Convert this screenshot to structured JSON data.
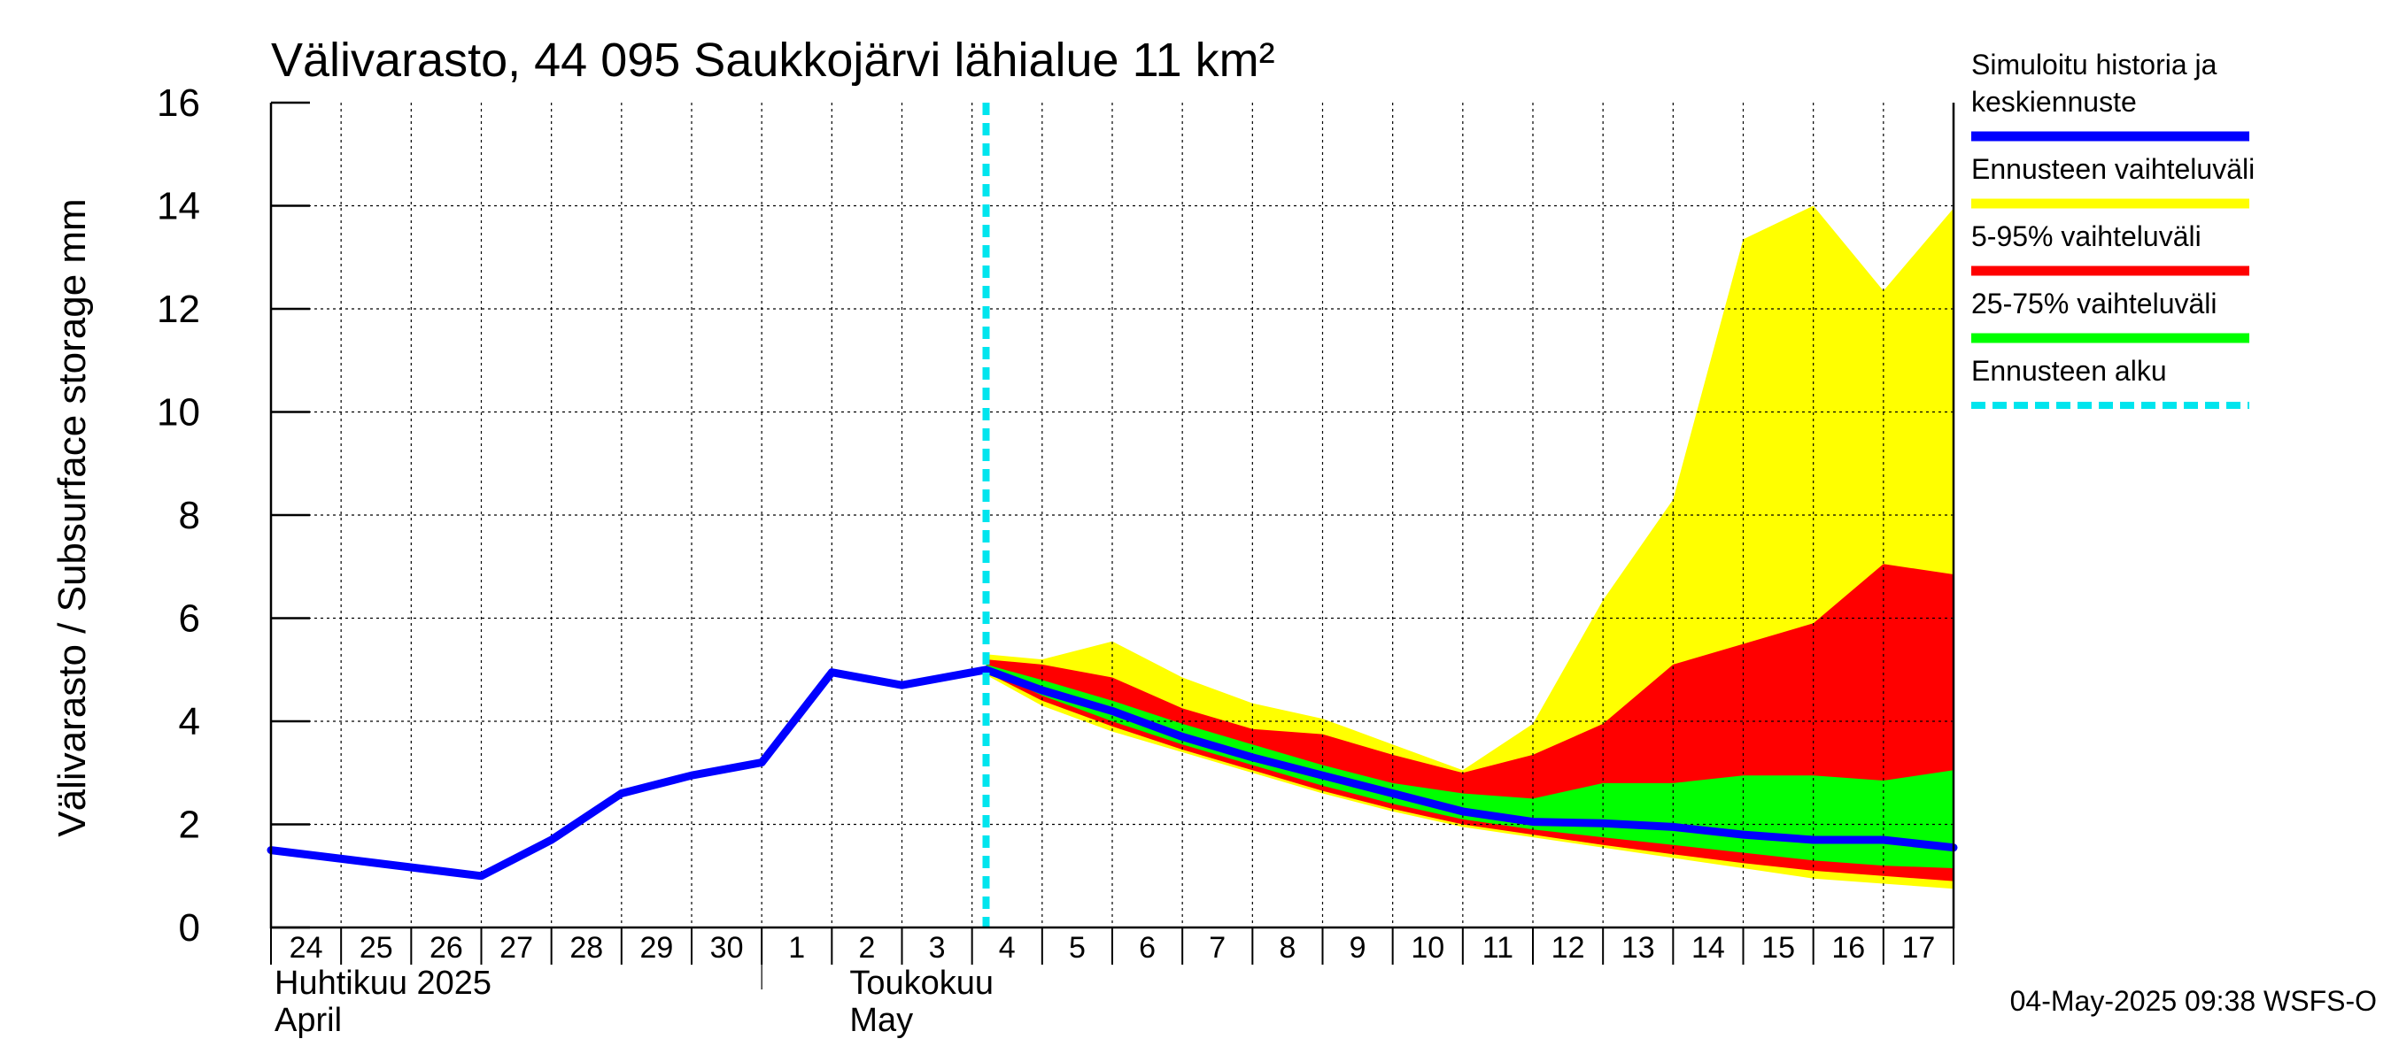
{
  "chart_data": {
    "type": "area",
    "title": "Välivarasto, 44 095 Saukkojärvi lähialue 11 km²",
    "ylabel": "Välivarasto / Subsurface storage  mm",
    "ylim": [
      0,
      16
    ],
    "yticks": [
      "0",
      "2",
      "4",
      "6",
      "8",
      "10",
      "12",
      "14",
      "16"
    ],
    "grid": true,
    "legend_position": "right",
    "x_tick_labels": [
      "24",
      "25",
      "26",
      "27",
      "28",
      "29",
      "30",
      "1",
      "2",
      "3",
      "4",
      "5",
      "6",
      "7",
      "8",
      "9",
      "10",
      "11",
      "12",
      "13",
      "14",
      "15",
      "16",
      "17"
    ],
    "month_labels": [
      {
        "line1": "Huhtikuu  2025",
        "line2": "April"
      },
      {
        "line1": "Toukokuu",
        "line2": "May"
      }
    ],
    "forecast_start_day": 10.2,
    "series": [
      {
        "name": "Simuloitu historia ja keskiennuste",
        "color": "#0000ff",
        "x": [
          0,
          3,
          4,
          5,
          6,
          7,
          8,
          9,
          10,
          10.2,
          11,
          12,
          13,
          14,
          15,
          16,
          17,
          18,
          19,
          20,
          21,
          22,
          23,
          24
        ],
        "values": [
          1.5,
          1.0,
          1.7,
          2.6,
          2.95,
          3.2,
          4.95,
          4.7,
          4.95,
          5.0,
          4.6,
          4.2,
          3.7,
          3.3,
          2.95,
          2.6,
          2.25,
          2.05,
          2.02,
          1.95,
          1.8,
          1.7,
          1.7,
          1.55
        ]
      },
      {
        "name": "Ennusteen vaihteluväli",
        "color": "#ffff00",
        "x": [
          10.2,
          11,
          12,
          13,
          14,
          15,
          16,
          17,
          18,
          19,
          20,
          21,
          22,
          23,
          24
        ],
        "upper": [
          5.3,
          5.2,
          5.55,
          4.85,
          4.35,
          4.05,
          3.55,
          3.05,
          3.95,
          6.35,
          8.3,
          13.35,
          14.0,
          12.35,
          13.95
        ],
        "lower": [
          4.9,
          4.3,
          3.8,
          3.4,
          3.0,
          2.6,
          2.25,
          1.95,
          1.75,
          1.55,
          1.35,
          1.15,
          0.95,
          0.85,
          0.75
        ]
      },
      {
        "name": "5-95% vaihteluväli",
        "color": "#ff0000",
        "x": [
          10.2,
          11,
          12,
          13,
          14,
          15,
          16,
          17,
          18,
          19,
          20,
          21,
          22,
          23,
          24
        ],
        "upper": [
          5.2,
          5.1,
          4.85,
          4.25,
          3.85,
          3.75,
          3.35,
          3.0,
          3.35,
          3.95,
          5.1,
          5.5,
          5.9,
          7.05,
          6.85
        ],
        "lower": [
          4.95,
          4.4,
          3.9,
          3.45,
          3.05,
          2.65,
          2.3,
          2.0,
          1.8,
          1.6,
          1.42,
          1.25,
          1.1,
          1.0,
          0.9
        ]
      },
      {
        "name": "25-75% vaihteluväli",
        "color": "#00ff00",
        "x": [
          10.2,
          11,
          12,
          13,
          14,
          15,
          16,
          17,
          18,
          19,
          20,
          21,
          22,
          23,
          24
        ],
        "upper": [
          5.1,
          4.8,
          4.4,
          3.95,
          3.55,
          3.15,
          2.8,
          2.6,
          2.5,
          2.8,
          2.8,
          2.95,
          2.95,
          2.85,
          3.05
        ],
        "lower": [
          5.0,
          4.5,
          4.0,
          3.55,
          3.15,
          2.75,
          2.4,
          2.1,
          1.9,
          1.75,
          1.6,
          1.45,
          1.3,
          1.2,
          1.15
        ]
      }
    ]
  },
  "legend": [
    {
      "label_lines": [
        "Simuloitu historia ja",
        "keskiennuste"
      ],
      "color": "#0000ff",
      "style": "solid"
    },
    {
      "label_lines": [
        "Ennusteen vaihteluväli"
      ],
      "color": "#ffff00",
      "style": "solid"
    },
    {
      "label_lines": [
        "5-95% vaihteluväli"
      ],
      "color": "#ff0000",
      "style": "solid"
    },
    {
      "label_lines": [
        "25-75% vaihteluväli"
      ],
      "color": "#00ff00",
      "style": "solid"
    },
    {
      "label_lines": [
        "Ennusteen alku"
      ],
      "color": "#00e5ee",
      "style": "dashed"
    }
  ],
  "footer": "04-May-2025 09:38 WSFS-O"
}
